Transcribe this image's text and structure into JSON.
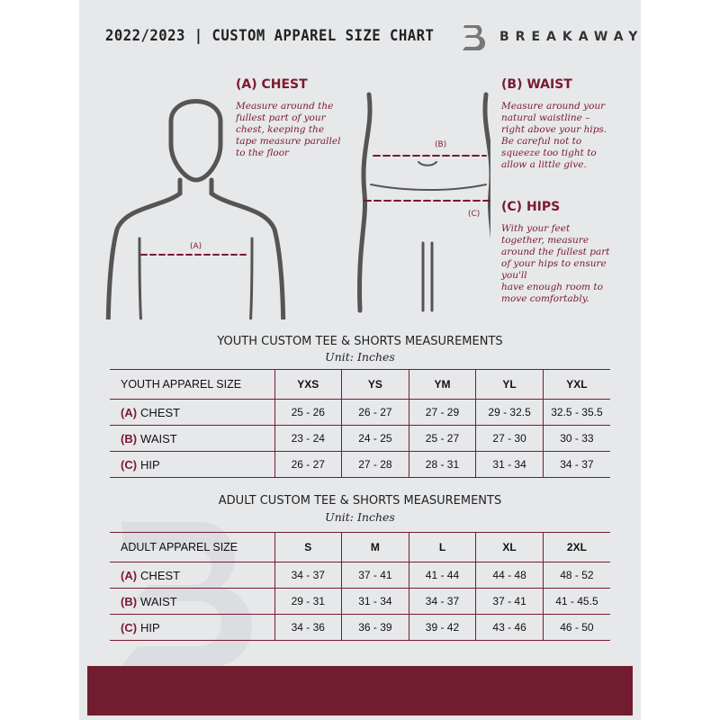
{
  "header": {
    "title": "2022/2023  |  CUSTOM APPAREL SIZE CHART",
    "brand": "BREAKAWAY"
  },
  "measures": {
    "chest": {
      "label": "(A) CHEST",
      "tag": "(A)",
      "desc": [
        "Measure around the",
        "fullest part of your",
        "chest, keeping the",
        "tape measure parallel",
        "to the floor"
      ]
    },
    "waist": {
      "label": "(B) WAIST",
      "tag": "(B)",
      "desc": [
        "Measure around your",
        "natural waistline –",
        "right above your hips.",
        "Be careful not to",
        "squeeze too tight to",
        "allow a little give."
      ]
    },
    "hips": {
      "label": "(C) HIPS",
      "tag": "(C)",
      "desc": [
        "With your feet",
        "together, measure",
        "around the fullest part",
        "of your hips to ensure",
        "you'll",
        "have enough room to",
        "move comfortably."
      ]
    }
  },
  "youth": {
    "title": "YOUTH CUSTOM TEE & SHORTS MEASUREMENTS",
    "unit": "Unit: Inches",
    "header": [
      "YOUTH APPAREL SIZE",
      "YXS",
      "YS",
      "YM",
      "YL",
      "YXL"
    ],
    "rows": [
      {
        "code": "(A)",
        "name": "CHEST",
        "values": [
          "25 - 26",
          "26 - 27",
          "27 - 29",
          "29 - 32.5",
          "32.5 - 35.5"
        ]
      },
      {
        "code": "(B)",
        "name": "WAIST",
        "values": [
          "23 - 24",
          "24 - 25",
          "25 - 27",
          "27 - 30",
          "30 - 33"
        ]
      },
      {
        "code": "(C)",
        "name": "HIP",
        "values": [
          "26 - 27",
          "27 - 28",
          "28 - 31",
          "31 - 34",
          "34 - 37"
        ]
      }
    ]
  },
  "adult": {
    "title": "ADULT CUSTOM TEE & SHORTS MEASUREMENTS",
    "unit": "Unit: Inches",
    "header": [
      "ADULT APPAREL SIZE",
      "S",
      "M",
      "L",
      "XL",
      "2XL"
    ],
    "rows": [
      {
        "code": "(A)",
        "name": "CHEST",
        "values": [
          "34 - 37",
          "37 - 41",
          "41 - 44",
          "44 - 48",
          "48 - 52"
        ]
      },
      {
        "code": "(B)",
        "name": "WAIST",
        "values": [
          "29 - 31",
          "31 - 34",
          "34 - 37",
          "37 - 41",
          "41 - 45.5"
        ]
      },
      {
        "code": "(C)",
        "name": "HIP",
        "values": [
          "34 - 36",
          "36 - 39",
          "39 - 42",
          "43 - 46",
          "46 - 50"
        ]
      }
    ]
  },
  "colors": {
    "accent": "#7a1a30",
    "band": "#721c30",
    "panel": "#e7e8ea"
  }
}
